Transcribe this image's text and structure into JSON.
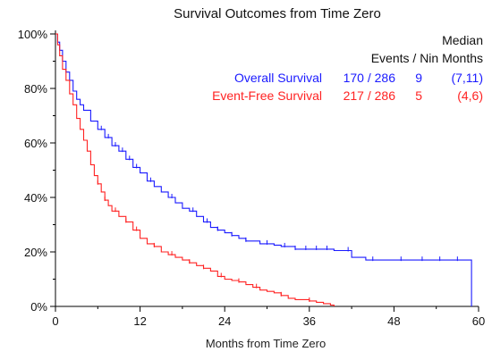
{
  "chart_data": {
    "type": "line",
    "title": "Survival Outcomes from Time Zero",
    "xlabel": "Months from Time Zero",
    "ylabel": "",
    "xlim": [
      0,
      60
    ],
    "ylim": [
      0,
      100
    ],
    "x_ticks": [
      0,
      12,
      24,
      36,
      48,
      60
    ],
    "y_ticks": [
      0,
      20,
      40,
      60,
      80,
      100
    ],
    "y_tick_labels": [
      "0%",
      "20%",
      "40%",
      "60%",
      "80%",
      "100%"
    ],
    "grid": false,
    "legend": {
      "placement": "top-right",
      "header_line1": "Median",
      "header_line2": "Events / Nin Months"
    },
    "series": [
      {
        "name": "Overall Survival",
        "color": "#1a1aff",
        "events": "170 / 286",
        "median": "9",
        "ci": "(7,11)",
        "step": true,
        "points": [
          [
            0,
            100
          ],
          [
            0.3,
            97
          ],
          [
            0.6,
            94
          ],
          [
            1,
            90
          ],
          [
            1.5,
            86
          ],
          [
            2,
            83
          ],
          [
            2.5,
            79
          ],
          [
            3,
            76
          ],
          [
            3.5,
            74
          ],
          [
            4,
            72
          ],
          [
            5,
            68
          ],
          [
            6,
            65
          ],
          [
            7,
            62
          ],
          [
            8,
            59
          ],
          [
            9,
            57
          ],
          [
            10,
            54
          ],
          [
            11,
            51
          ],
          [
            12,
            49
          ],
          [
            13,
            46
          ],
          [
            14,
            44
          ],
          [
            15,
            42
          ],
          [
            16,
            40
          ],
          [
            17,
            38
          ],
          [
            18,
            36
          ],
          [
            19,
            35
          ],
          [
            20,
            33
          ],
          [
            21,
            31
          ],
          [
            22,
            29
          ],
          [
            23,
            28
          ],
          [
            24,
            27
          ],
          [
            25,
            26
          ],
          [
            26,
            25
          ],
          [
            27,
            24
          ],
          [
            28,
            24
          ],
          [
            29,
            23
          ],
          [
            30,
            23
          ],
          [
            31,
            22.5
          ],
          [
            32,
            22
          ],
          [
            34,
            21
          ],
          [
            36,
            21
          ],
          [
            38,
            21
          ],
          [
            39.5,
            20.5
          ],
          [
            42,
            18
          ],
          [
            44,
            17
          ],
          [
            48,
            17
          ],
          [
            52,
            17
          ],
          [
            56,
            17
          ],
          [
            59,
            16.5
          ],
          [
            59,
            0
          ]
        ],
        "censor_x": [
          6.5,
          7.5,
          8.5,
          9.5,
          10.5,
          11.5,
          13.5,
          16.5,
          19.5,
          21.5,
          23,
          25,
          27,
          30,
          32.5,
          34,
          35.5,
          37,
          38.5,
          41.5,
          45,
          49,
          52,
          54.5,
          57
        ]
      },
      {
        "name": "Event-Free Survival",
        "color": "#ff2222",
        "events": "217 / 286",
        "median": "5",
        "ci": "(4,6)",
        "step": true,
        "points": [
          [
            0,
            100
          ],
          [
            0.3,
            96
          ],
          [
            0.6,
            92
          ],
          [
            1,
            87
          ],
          [
            1.5,
            83
          ],
          [
            2,
            78
          ],
          [
            2.5,
            74
          ],
          [
            3,
            69
          ],
          [
            3.5,
            65
          ],
          [
            4,
            61
          ],
          [
            4.5,
            57
          ],
          [
            5,
            52
          ],
          [
            5.5,
            48
          ],
          [
            6,
            45
          ],
          [
            6.5,
            42
          ],
          [
            7,
            39
          ],
          [
            7.5,
            37
          ],
          [
            8,
            35
          ],
          [
            9,
            33
          ],
          [
            10,
            31
          ],
          [
            11,
            28
          ],
          [
            12,
            25
          ],
          [
            13,
            23
          ],
          [
            14,
            22
          ],
          [
            15,
            20
          ],
          [
            16,
            19
          ],
          [
            17,
            18
          ],
          [
            18,
            17
          ],
          [
            19,
            16
          ],
          [
            20,
            15
          ],
          [
            21,
            14
          ],
          [
            22,
            13
          ],
          [
            23,
            11
          ],
          [
            24,
            10
          ],
          [
            25,
            9.5
          ],
          [
            26,
            9
          ],
          [
            27,
            8
          ],
          [
            28,
            7
          ],
          [
            29,
            6
          ],
          [
            30,
            5.5
          ],
          [
            31,
            5
          ],
          [
            32,
            4
          ],
          [
            33,
            3
          ],
          [
            34,
            2.5
          ],
          [
            36,
            2
          ],
          [
            37,
            1.5
          ],
          [
            38,
            1
          ],
          [
            39,
            0.5
          ],
          [
            39.5,
            0
          ]
        ],
        "censor_x": [
          6,
          7,
          8.5,
          10,
          11.5,
          14,
          16.5,
          19,
          21,
          23.5,
          26,
          28.5,
          32,
          36
        ]
      }
    ]
  }
}
